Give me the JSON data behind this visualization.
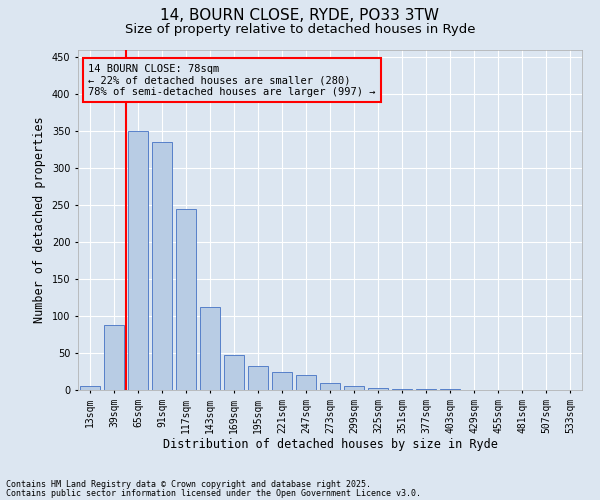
{
  "title1": "14, BOURN CLOSE, RYDE, PO33 3TW",
  "title2": "Size of property relative to detached houses in Ryde",
  "xlabel": "Distribution of detached houses by size in Ryde",
  "ylabel": "Number of detached properties",
  "categories": [
    "13sqm",
    "39sqm",
    "65sqm",
    "91sqm",
    "117sqm",
    "143sqm",
    "169sqm",
    "195sqm",
    "221sqm",
    "247sqm",
    "273sqm",
    "299sqm",
    "325sqm",
    "351sqm",
    "377sqm",
    "403sqm",
    "429sqm",
    "455sqm",
    "481sqm",
    "507sqm",
    "533sqm"
  ],
  "values": [
    5,
    88,
    350,
    335,
    245,
    112,
    48,
    32,
    25,
    20,
    10,
    5,
    3,
    2,
    1,
    1,
    0,
    0,
    0,
    0,
    0
  ],
  "bar_color": "#b8cce4",
  "bar_edge_color": "#4472c4",
  "bg_color": "#dce6f1",
  "grid_color": "#ffffff",
  "vline_color": "#ff0000",
  "annotation_line1": "14 BOURN CLOSE: 78sqm",
  "annotation_line2": "← 22% of detached houses are smaller (280)",
  "annotation_line3": "78% of semi-detached houses are larger (997) →",
  "annotation_box_color": "#ff0000",
  "ylim": [
    0,
    460
  ],
  "yticks": [
    0,
    50,
    100,
    150,
    200,
    250,
    300,
    350,
    400,
    450
  ],
  "footnote1": "Contains HM Land Registry data © Crown copyright and database right 2025.",
  "footnote2": "Contains public sector information licensed under the Open Government Licence v3.0.",
  "title_fontsize": 11,
  "subtitle_fontsize": 9.5,
  "axis_label_fontsize": 8.5,
  "tick_fontsize": 7,
  "annotation_fontsize": 7.5,
  "footnote_fontsize": 6
}
